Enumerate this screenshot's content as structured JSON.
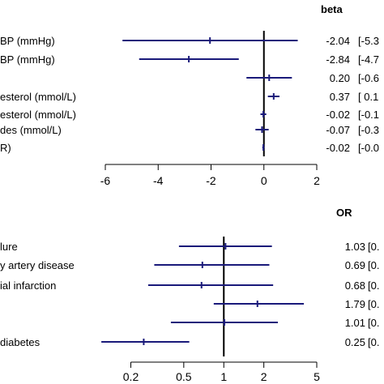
{
  "chart_data": [
    {
      "type": "forest",
      "title": "",
      "stat_header": "beta",
      "xlim": [
        -6,
        2
      ],
      "xticks": [
        -6,
        -4,
        -2,
        0,
        2
      ],
      "xtick_labels": [
        "-6",
        "-4",
        "-2",
        "0",
        "2"
      ],
      "reference_line": 0,
      "scale": "linear",
      "marker_color": "#1a1a7a",
      "rows": [
        {
          "label": "BP (mmHg)",
          "estimate": -2.04,
          "low": -5.35,
          "high": 1.28,
          "value_text": "-2.04",
          "ci_text": "[-5.3"
        },
        {
          "label": "BP (mmHg)",
          "estimate": -2.84,
          "low": -4.72,
          "high": -0.95,
          "value_text": "-2.84",
          "ci_text": "[-4.7"
        },
        {
          "label": "",
          "estimate": 0.2,
          "low": -0.66,
          "high": 1.06,
          "value_text": "0.20",
          "ci_text": "[-0.6"
        },
        {
          "label": "esterol (mmol/L)",
          "estimate": 0.37,
          "low": 0.15,
          "high": 0.59,
          "value_text": "0.37",
          "ci_text": "[ 0.1"
        },
        {
          "label": "esterol (mmol/L)",
          "estimate": -0.02,
          "low": -0.13,
          "high": 0.09,
          "value_text": "-0.02",
          "ci_text": "[-0.1"
        },
        {
          "label": "des (mmol/L)",
          "estimate": -0.07,
          "low": -0.32,
          "high": 0.18,
          "value_text": "-0.07",
          "ci_text": "[-0.3"
        },
        {
          "label": "R)",
          "estimate": -0.02,
          "low": -0.06,
          "high": 0.02,
          "value_text": "-0.02",
          "ci_text": "[-0.0"
        }
      ]
    },
    {
      "type": "forest",
      "title": "",
      "stat_header": "OR",
      "xlim": [
        0.15,
        5
      ],
      "xticks": [
        0.2,
        0.5,
        1,
        2,
        5
      ],
      "xtick_labels": [
        "0.2",
        "0.5",
        "1",
        "2",
        "5"
      ],
      "reference_line": 1,
      "scale": "log",
      "marker_color": "#1a1a7a",
      "rows": [
        {
          "label": "lure",
          "estimate": 1.03,
          "low": 0.46,
          "high": 2.3,
          "value_text": "1.03",
          "ci_text": "[0."
        },
        {
          "label": "y artery disease",
          "estimate": 0.69,
          "low": 0.3,
          "high": 2.2,
          "value_text": "0.69",
          "ci_text": "[0."
        },
        {
          "label": "ial infarction",
          "estimate": 0.68,
          "low": 0.27,
          "high": 2.35,
          "value_text": "0.68",
          "ci_text": "[0."
        },
        {
          "label": "",
          "estimate": 1.79,
          "low": 0.84,
          "high": 4.0,
          "value_text": "1.79",
          "ci_text": "[0."
        },
        {
          "label": "",
          "estimate": 1.01,
          "low": 0.4,
          "high": 2.55,
          "value_text": "1.01",
          "ci_text": "[0."
        },
        {
          "label": "diabetes",
          "estimate": 0.25,
          "low": 0.12,
          "high": 0.55,
          "value_text": "0.25",
          "ci_text": "[0."
        }
      ]
    }
  ]
}
